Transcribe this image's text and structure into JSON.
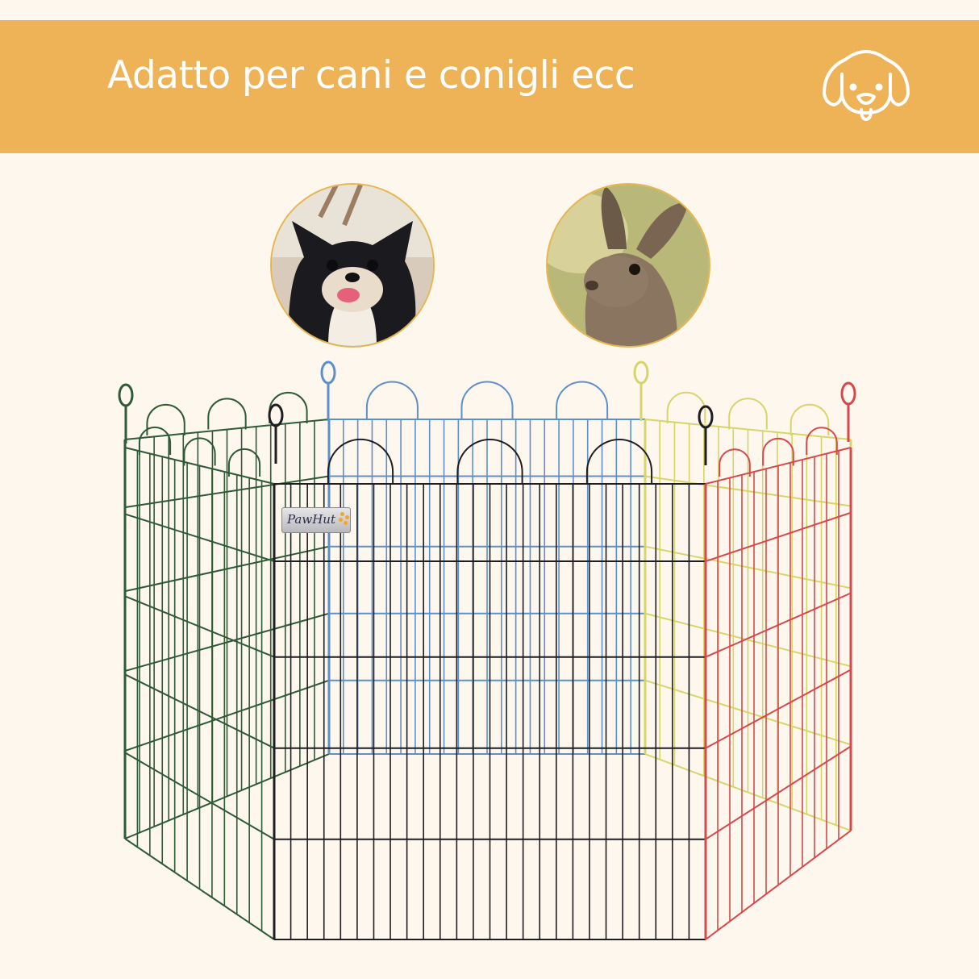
{
  "banner": {
    "title": "Adatto per cani e conigli ecc",
    "icon": "dog-face-icon",
    "background_color": "#EEB257",
    "text_color": "#FFFFFF"
  },
  "photos": [
    {
      "subject": "dog",
      "icon": "chihuahua-photo"
    },
    {
      "subject": "rabbit",
      "icon": "hare-photo"
    }
  ],
  "product": {
    "brand": "PawHut",
    "panel_colors": [
      "#2E5A36",
      "#5F8FCB",
      "#D9D46A",
      "#1E1E22",
      "#D7484A"
    ],
    "panel_count": 6
  },
  "page": {
    "background_color": "#FDF7EE"
  }
}
